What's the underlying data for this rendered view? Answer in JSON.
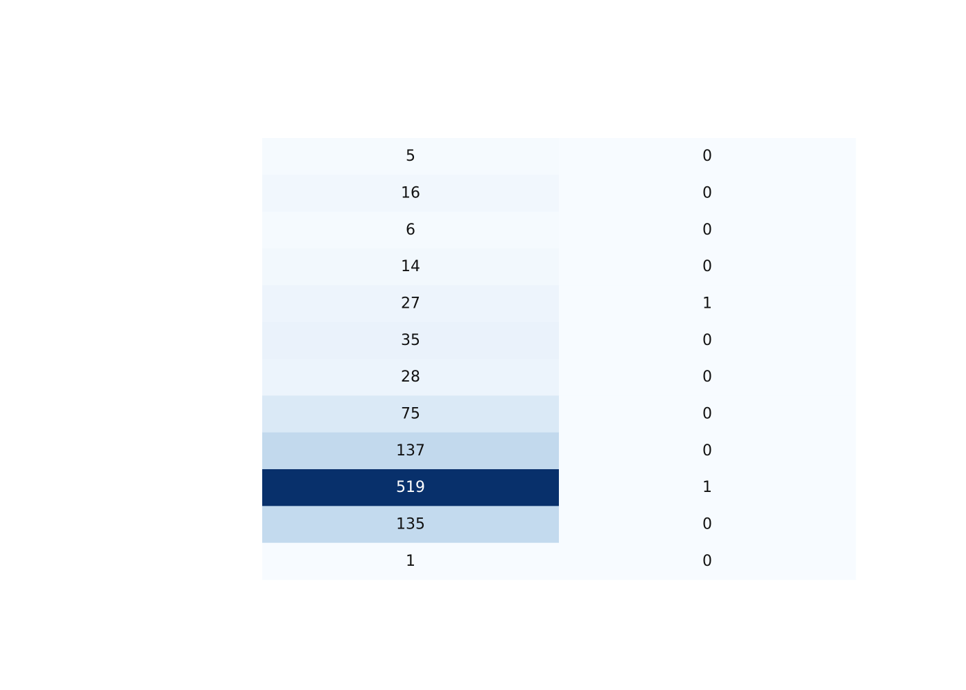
{
  "chart_data": {
    "type": "heatmap",
    "title": "",
    "xlabel": "",
    "ylabel": "",
    "grid": false,
    "legend": "none",
    "colorscale": "Blues",
    "colors": {
      "low": "#f7fbff",
      "high": "#08306b",
      "text_dark": "#111111",
      "text_light": "#ffffff"
    },
    "rows": [
      [
        5,
        0
      ],
      [
        16,
        0
      ],
      [
        6,
        0
      ],
      [
        14,
        0
      ],
      [
        27,
        1
      ],
      [
        35,
        0
      ],
      [
        28,
        0
      ],
      [
        75,
        0
      ],
      [
        137,
        0
      ],
      [
        519,
        1
      ],
      [
        135,
        0
      ],
      [
        1,
        0
      ]
    ]
  }
}
